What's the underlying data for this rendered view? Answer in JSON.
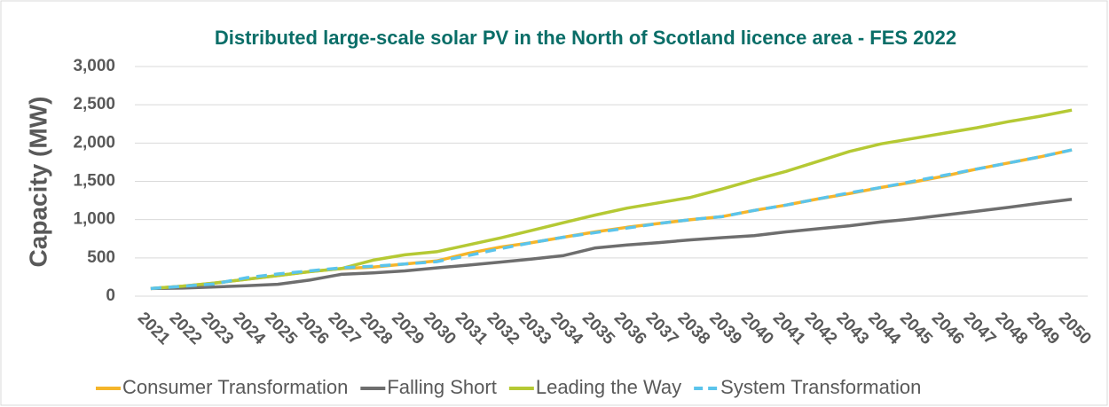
{
  "chart_data": {
    "type": "line",
    "title": "Distributed large-scale solar PV in the North of Scotland licence area - FES 2022",
    "y_label": "Capacity (MW)",
    "categories": [
      "2021",
      "2022",
      "2023",
      "2024",
      "2025",
      "2026",
      "2027",
      "2028",
      "2029",
      "2030",
      "2031",
      "2032",
      "2033",
      "2034",
      "2035",
      "2036",
      "2037",
      "2038",
      "2039",
      "2040",
      "2041",
      "2042",
      "2043",
      "2044",
      "2045",
      "2046",
      "2047",
      "2048",
      "2049",
      "2050"
    ],
    "series": [
      {
        "name": "Consumer Transformation",
        "color": "#f5b52a",
        "dashed": false,
        "values": [
          100,
          130,
          170,
          220,
          270,
          320,
          360,
          380,
          420,
          460,
          560,
          640,
          700,
          770,
          840,
          900,
          950,
          1000,
          1040,
          1120,
          1190,
          1270,
          1340,
          1420,
          1490,
          1570,
          1660,
          1740,
          1820,
          1910
        ]
      },
      {
        "name": "Falling Short",
        "color": "#6e6e6e",
        "dashed": false,
        "values": [
          100,
          105,
          120,
          135,
          155,
          210,
          285,
          305,
          330,
          370,
          405,
          445,
          485,
          530,
          630,
          670,
          700,
          735,
          765,
          790,
          840,
          880,
          920,
          970,
          1010,
          1060,
          1110,
          1160,
          1215,
          1265
        ]
      },
      {
        "name": "Leading the Way",
        "color": "#b5c934",
        "dashed": false,
        "values": [
          100,
          130,
          170,
          220,
          270,
          320,
          360,
          470,
          540,
          580,
          670,
          760,
          860,
          960,
          1060,
          1150,
          1220,
          1290,
          1400,
          1520,
          1630,
          1760,
          1890,
          1990,
          2060,
          2130,
          2200,
          2280,
          2350,
          2430
        ]
      },
      {
        "name": "System Transformation",
        "color": "#5bc4eb",
        "dashed": true,
        "values": [
          100,
          130,
          160,
          240,
          290,
          330,
          370,
          390,
          420,
          450,
          530,
          620,
          700,
          770,
          830,
          890,
          950,
          1000,
          1040,
          1120,
          1190,
          1270,
          1350,
          1420,
          1500,
          1580,
          1660,
          1740,
          1820,
          1910
        ]
      }
    ],
    "ylim": [
      0,
      3000
    ],
    "yticks": [
      0,
      500,
      {
        "value": 1000,
        "label": "1,000"
      },
      {
        "value": 1500,
        "label": "1,500"
      },
      {
        "value": 2000,
        "label": "2,000"
      },
      {
        "value": 2500,
        "label": "2,500"
      },
      {
        "value": 3000,
        "label": "3,000"
      }
    ],
    "grid": true,
    "legend": "bottom"
  }
}
